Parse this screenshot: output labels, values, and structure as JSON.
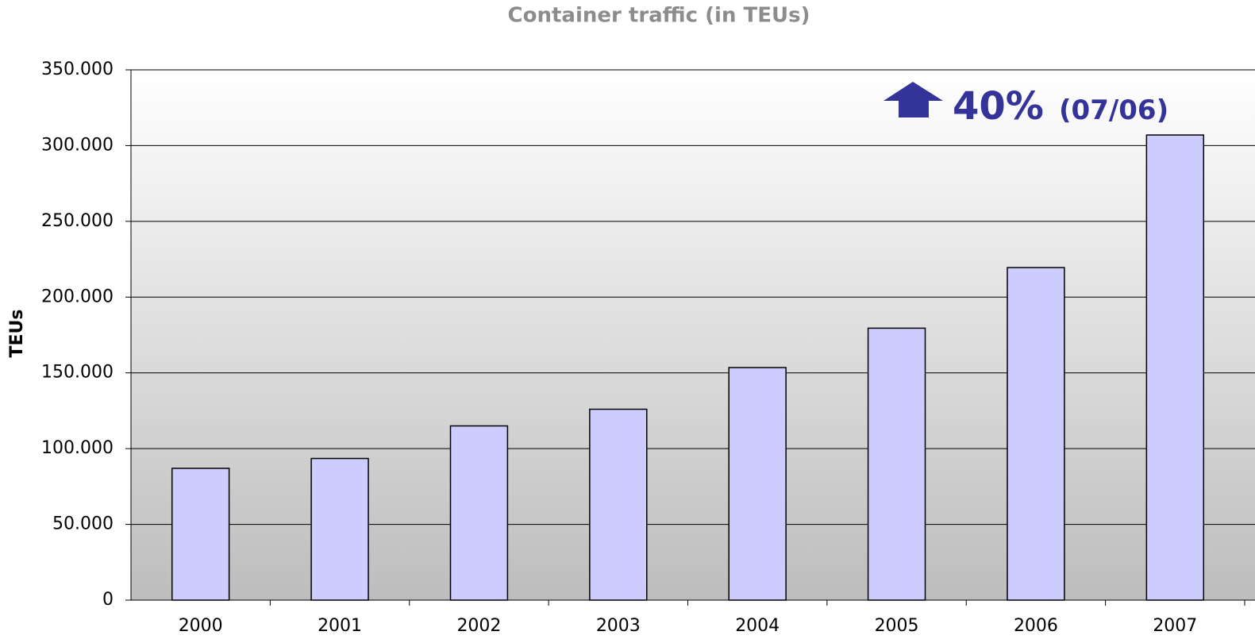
{
  "chart_data": {
    "type": "bar",
    "title": "Container traffic (in TEUs)",
    "y_label": "TEUs",
    "annotation": {
      "value": "40%",
      "note": "(07/06)"
    },
    "categories": [
      "2000",
      "2001",
      "2002",
      "2003",
      "2004",
      "2005",
      "2006",
      "2007"
    ],
    "values": [
      87000,
      93500,
      115000,
      126000,
      153500,
      179500,
      219500,
      307000
    ],
    "color": "#ccccff",
    "ylim": [
      0,
      350000
    ],
    "yticks": [
      0,
      {
        "value": 50000,
        "label": "50.000"
      },
      {
        "value": 100000,
        "label": "100.000"
      },
      {
        "value": 150000,
        "label": "150.000"
      },
      {
        "value": 200000,
        "label": "200.000"
      },
      {
        "value": 250000,
        "label": "250.000"
      },
      {
        "value": 300000,
        "label": "300.000"
      },
      {
        "value": 350000,
        "label": "350.000"
      }
    ],
    "grid": true
  }
}
